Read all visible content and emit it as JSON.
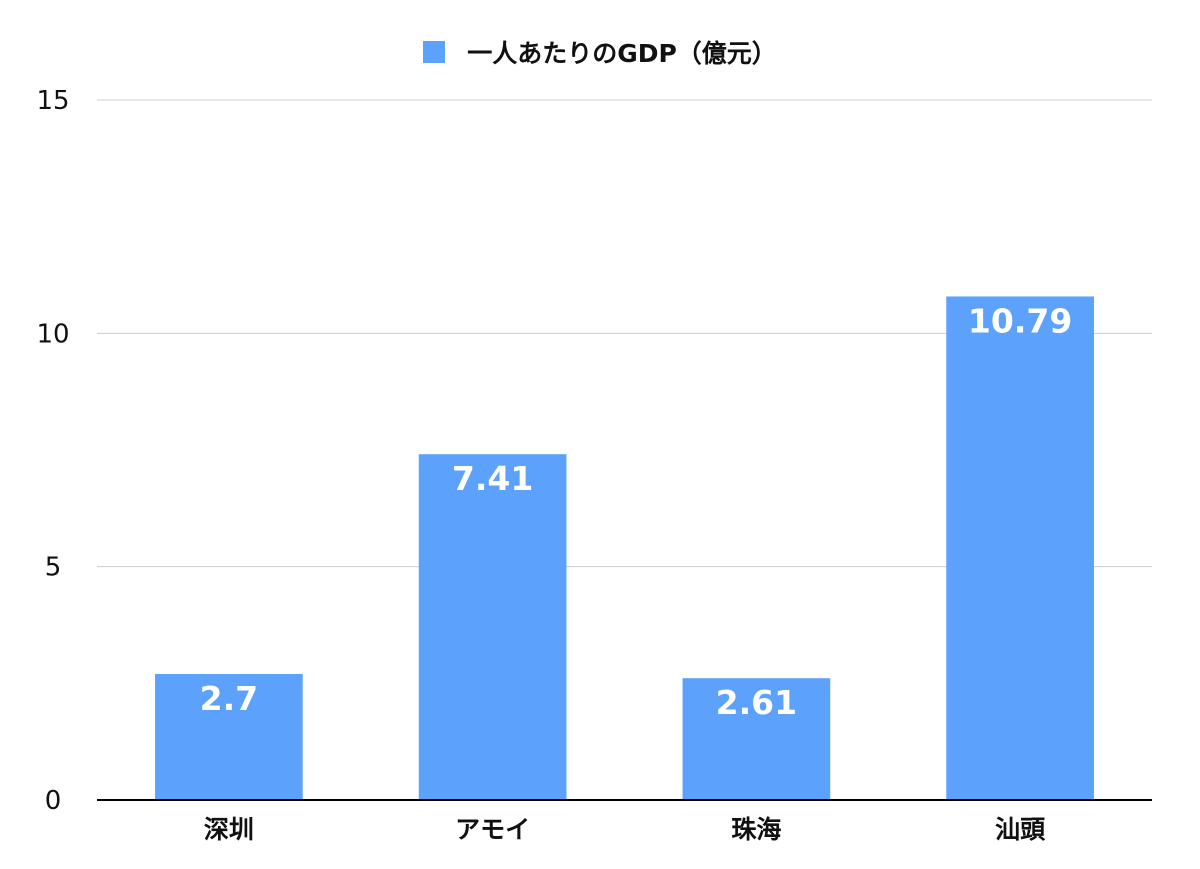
{
  "colors": {
    "bar": "#5ca2fd",
    "grid": "#cccccc",
    "axis": "#000000",
    "data_label": "#ffffff",
    "text": "#111111"
  },
  "legend": {
    "label": "一人あたりのGDP（億元）",
    "position": "top-center"
  },
  "chart_data": {
    "type": "bar",
    "categories": [
      "深圳",
      "アモイ",
      "珠海",
      "汕頭"
    ],
    "series": [
      {
        "name": "一人あたりのGDP（億元）",
        "values": [
          2.7,
          7.41,
          2.61,
          10.79
        ],
        "data_labels": [
          "2.7",
          "7.41",
          "2.61",
          "10.79"
        ]
      }
    ],
    "title": "",
    "xlabel": "",
    "ylabel": "",
    "ylim": [
      0,
      15
    ],
    "yticks": [
      0,
      5,
      10,
      15
    ],
    "ytick_labels": [
      "0",
      "5",
      "10",
      "15"
    ],
    "grid": true,
    "legend_position": "top-center"
  }
}
